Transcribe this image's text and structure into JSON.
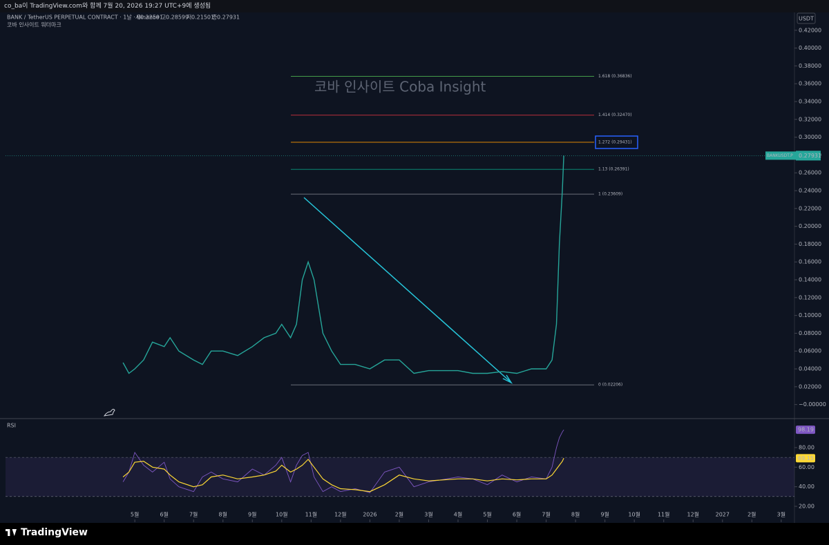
{
  "header": {
    "caption": "co_ba이 TradingView.com와 함께 7월 20, 2026 19:27 UTC+9에 생성됨"
  },
  "footer": {
    "logo": "TradingView"
  },
  "chart_data": {
    "type": "line",
    "title": "BANK / TetherUS PERPETUAL CONTRACT · 1날 · Binance",
    "subtitle": "코바 인사이트 워터마크",
    "watermark": "코바 인사이트 Coba Insight",
    "currency": "USDT",
    "ohlc": [
      {
        "label": "시",
        "value": 0.22591
      },
      {
        "label": "고",
        "value": 0.28599
      },
      {
        "label": "저",
        "value": 0.21501
      },
      {
        "label": "종",
        "value": 0.27931
      }
    ],
    "symbol_tag": "BANKUSDT.P",
    "xlim": [
      -4.4,
      22.45
    ],
    "xticks": [
      {
        "value": 0,
        "label": "5월"
      },
      {
        "value": 1,
        "label": "6월"
      },
      {
        "value": 2,
        "label": "7월"
      },
      {
        "value": 3,
        "label": "8월"
      },
      {
        "value": 4,
        "label": "9월"
      },
      {
        "value": 5,
        "label": "10월"
      },
      {
        "value": 6,
        "label": "11월"
      },
      {
        "value": 7,
        "label": "12월"
      },
      {
        "value": 8,
        "label": "2026"
      },
      {
        "value": 9,
        "label": "2월"
      },
      {
        "value": 10,
        "label": "3월"
      },
      {
        "value": 11,
        "label": "4월"
      },
      {
        "value": 12,
        "label": "5월"
      },
      {
        "value": 13,
        "label": "6월"
      },
      {
        "value": 14,
        "label": "7월"
      },
      {
        "value": 15,
        "label": "8월"
      },
      {
        "value": 16,
        "label": "9월"
      },
      {
        "value": 17,
        "label": "10월"
      },
      {
        "value": 18,
        "label": "11월"
      },
      {
        "value": 19,
        "label": "12월"
      },
      {
        "value": 20,
        "label": "2027"
      },
      {
        "value": 21,
        "label": "2월"
      },
      {
        "value": 22,
        "label": "3월"
      }
    ],
    "ylim": [
      -0.015,
      0.44
    ],
    "yticks": [
      {
        "value": 0.42,
        "label": "0.42000"
      },
      {
        "value": 0.4,
        "label": "0.40000"
      },
      {
        "value": 0.38,
        "label": "0.38000"
      },
      {
        "value": 0.36,
        "label": "0.36000"
      },
      {
        "value": 0.34,
        "label": "0.34000"
      },
      {
        "value": 0.32,
        "label": "0.32000"
      },
      {
        "value": 0.3,
        "label": "0.30000"
      },
      {
        "value": 0.28,
        "label": "0.28000"
      },
      {
        "value": 0.26,
        "label": "0.26000"
      },
      {
        "value": 0.24,
        "label": "0.24000"
      },
      {
        "value": 0.22,
        "label": "0.22000"
      },
      {
        "value": 0.2,
        "label": "0.20000"
      },
      {
        "value": 0.18,
        "label": "0.18000"
      },
      {
        "value": 0.16,
        "label": "0.16000"
      },
      {
        "value": 0.14,
        "label": "0.14000"
      },
      {
        "value": 0.12,
        "label": "0.12000"
      },
      {
        "value": 0.1,
        "label": "0.10000"
      },
      {
        "value": 0.08,
        "label": "0.08000"
      },
      {
        "value": 0.06,
        "label": "0.06000"
      },
      {
        "value": 0.04,
        "label": "0.04000"
      },
      {
        "value": 0.02,
        "label": "0.02000"
      },
      {
        "value": 0,
        "label": "−0.00000"
      }
    ],
    "x": [
      -0.4,
      -0.2,
      0,
      0.3,
      0.6,
      1,
      1.2,
      1.5,
      2,
      2.3,
      2.6,
      3,
      3.5,
      4,
      4.4,
      4.8,
      5,
      5.3,
      5.5,
      5.7,
      5.9,
      6.1,
      6.4,
      6.7,
      7,
      7.5,
      8,
      8.5,
      9,
      9.5,
      10,
      11,
      11.5,
      12,
      12.5,
      13,
      13.5,
      14,
      14.2,
      14.35,
      14.45,
      14.55,
      14.6
    ],
    "series": [
      {
        "name": "BANKUSDT.P",
        "color": "#26a69a",
        "values": [
          0.047,
          0.035,
          0.04,
          0.05,
          0.07,
          0.065,
          0.075,
          0.06,
          0.05,
          0.045,
          0.06,
          0.06,
          0.055,
          0.065,
          0.075,
          0.08,
          0.09,
          0.075,
          0.09,
          0.14,
          0.16,
          0.14,
          0.08,
          0.06,
          0.045,
          0.045,
          0.04,
          0.05,
          0.05,
          0.035,
          0.038,
          0.038,
          0.035,
          0.035,
          0.037,
          0.035,
          0.04,
          0.04,
          0.05,
          0.09,
          0.18,
          0.24,
          0.27931
        ]
      }
    ],
    "fib_levels": [
      {
        "label": "1.618 (0.36836)",
        "value": 0.36836,
        "color": "#4caf50"
      },
      {
        "label": "1.414 (0.32470)",
        "value": 0.3247,
        "color": "#f23645"
      },
      {
        "label": "1.272 (0.29431)",
        "value": 0.29431,
        "color": "#ff9800"
      },
      {
        "label": "1.13 (0.26391)",
        "value": 0.26391,
        "color": "#089981"
      },
      {
        "label": "1 (0.23609)",
        "value": 0.23609,
        "color": "#787b86"
      },
      {
        "label": "0 (0.02206)",
        "value": 0.02206,
        "color": "#787b86"
      }
    ],
    "rsi": {
      "title": "RSI",
      "ylim": [
        6.6,
        108.9
      ],
      "yticks": [
        {
          "value": 80,
          "label": "80.00"
        },
        {
          "value": 60,
          "label": "60.00"
        },
        {
          "value": 40,
          "label": "40.00"
        },
        {
          "value": 20,
          "label": "20.00"
        }
      ],
      "bands": [
        30,
        70
      ],
      "series": [
        {
          "color": "#7e57c2",
          "values": [
            45,
            55,
            75,
            62,
            55,
            65,
            48,
            40,
            35,
            50,
            55,
            48,
            45,
            58,
            52,
            62,
            70,
            45,
            62,
            72,
            75,
            50,
            35,
            40,
            35,
            38,
            34,
            55,
            60,
            40,
            45,
            50,
            48,
            42,
            52,
            45,
            50,
            48,
            60,
            80,
            90,
            96,
            98.19
          ]
        },
        {
          "color": "#fdd835",
          "values": [
            50,
            55,
            65,
            66,
            60,
            58,
            52,
            45,
            40,
            42,
            50,
            52,
            48,
            50,
            52,
            56,
            62,
            55,
            58,
            62,
            68,
            60,
            48,
            42,
            38,
            37,
            35,
            42,
            52,
            48,
            46,
            48,
            48,
            46,
            48,
            47,
            48,
            48,
            52,
            58,
            62,
            66,
            69.15
          ]
        }
      ]
    }
  }
}
